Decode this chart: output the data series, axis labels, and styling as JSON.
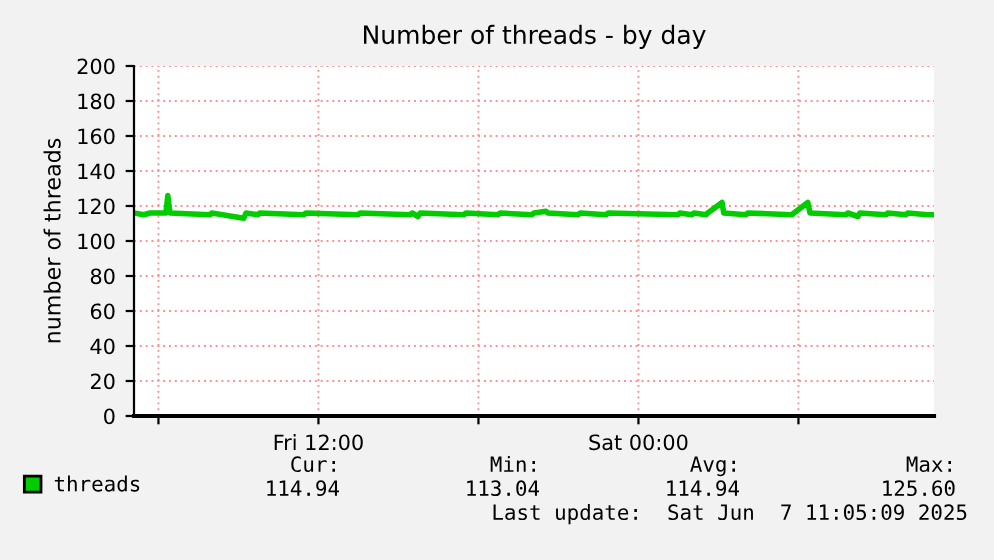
{
  "chart_data": {
    "type": "line",
    "title": "Number of threads - by day",
    "ylabel": "number of threads",
    "x": [
      "2025-06-06T05:05",
      "2025-06-06T05:27",
      "2025-06-06T05:41",
      "2025-06-06T06:17",
      "2025-06-06T06:21",
      "2025-06-06T06:26",
      "2025-06-06T07:56",
      "2025-06-06T08:00",
      "2025-06-06T09:12",
      "2025-06-06T09:17",
      "2025-06-06T09:44",
      "2025-06-06T09:48",
      "2025-06-06T11:27",
      "2025-06-06T11:32",
      "2025-06-06T13:29",
      "2025-06-06T13:34",
      "2025-06-06T15:26",
      "2025-06-06T15:31",
      "2025-06-06T15:44",
      "2025-06-06T15:49",
      "2025-06-06T17:27",
      "2025-06-06T17:32",
      "2025-06-06T18:44",
      "2025-06-06T18:49",
      "2025-06-06T20:00",
      "2025-06-06T20:05",
      "2025-06-06T20:32",
      "2025-06-06T20:36",
      "2025-06-06T21:44",
      "2025-06-06T21:49",
      "2025-06-06T22:47",
      "2025-06-06T22:52",
      "2025-06-07T01:29",
      "2025-06-07T01:33",
      "2025-06-07T02:00",
      "2025-06-07T02:05",
      "2025-06-07T02:32",
      "2025-06-07T02:36",
      "2025-06-07T03:08",
      "2025-06-07T03:12",
      "2025-06-07T04:02",
      "2025-06-07T04:06",
      "2025-06-07T05:45",
      "2025-06-07T05:50",
      "2025-06-07T06:21",
      "2025-06-07T06:26",
      "2025-06-07T07:47",
      "2025-06-07T07:51",
      "2025-06-07T08:14",
      "2025-06-07T08:18",
      "2025-06-07T09:17",
      "2025-06-07T09:21",
      "2025-06-07T10:02",
      "2025-06-07T10:06",
      "2025-06-07T10:51",
      "2025-06-07T11:05"
    ],
    "series": [
      {
        "name": "threads",
        "color": "#00cc00",
        "values": [
          116,
          115,
          116,
          116,
          126,
          116,
          115,
          116,
          113,
          116,
          115,
          116,
          115,
          116,
          115,
          116,
          115,
          116,
          114,
          116,
          115,
          116,
          115,
          116,
          115,
          116,
          117,
          116,
          115,
          116,
          115,
          116,
          115,
          116,
          115,
          116,
          115,
          116,
          122,
          116,
          115,
          116,
          115,
          116,
          122,
          116,
          115,
          116,
          114,
          116,
          115,
          116,
          115,
          116,
          115,
          115
        ]
      }
    ],
    "xlim": [
      "2025-06-06T05:05",
      "2025-06-07T11:05"
    ],
    "xticks": [
      {
        "value": "2025-06-06T06:00",
        "label": null
      },
      {
        "value": "2025-06-06T12:00",
        "label": "Fri 12:00"
      },
      {
        "value": "2025-06-06T18:00",
        "label": null
      },
      {
        "value": "2025-06-07T00:00",
        "label": "Sat 00:00"
      },
      {
        "value": "2025-06-07T06:00",
        "label": null
      }
    ],
    "ylim": [
      0,
      200
    ],
    "yticks": [
      0,
      20,
      40,
      60,
      80,
      100,
      120,
      140,
      160,
      180,
      200
    ],
    "grid": true,
    "legend": "bottom left",
    "annotations": [
      "Cur:",
      "Min:",
      "Avg:",
      "Max:",
      "114.94",
      "113.04",
      "114.94",
      "125.60",
      "Last update:  Sat Jun  7 11:05:09 2025"
    ]
  }
}
